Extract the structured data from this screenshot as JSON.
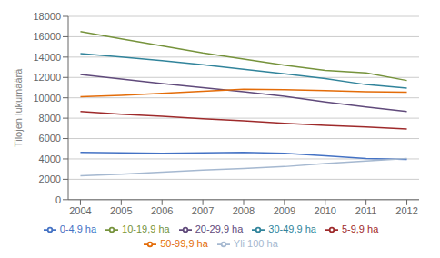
{
  "chart_data": {
    "type": "line",
    "ylabel": "Tilojen lukumäärä",
    "x": [
      2004,
      2005,
      2006,
      2007,
      2008,
      2009,
      2010,
      2011,
      2012
    ],
    "xlim": [
      2003.7,
      2012.3
    ],
    "xticks": [
      2004,
      2005,
      2006,
      2007,
      2008,
      2009,
      2010,
      2011,
      2012
    ],
    "ylim": [
      0,
      18000
    ],
    "yticks": [
      0,
      2000,
      4000,
      6000,
      8000,
      10000,
      12000,
      14000,
      16000,
      18000
    ],
    "grid": true,
    "legend": "bottom",
    "series": [
      {
        "name": "0-4,9 ha",
        "color": "#4472C4",
        "values": [
          4650,
          4600,
          4550,
          4600,
          4650,
          4550,
          4300,
          4050,
          3950
        ]
      },
      {
        "name": "5-9,9 ha",
        "color": "#9E2A2B",
        "values": [
          8650,
          8400,
          8200,
          7950,
          7750,
          7500,
          7300,
          7150,
          6950
        ]
      },
      {
        "name": "10-19,9 ha",
        "color": "#76933C",
        "values": [
          16500,
          15800,
          15100,
          14400,
          13800,
          13200,
          12700,
          12450,
          11700
        ]
      },
      {
        "name": "20-29,9 ha",
        "color": "#604A7B",
        "values": [
          12300,
          11850,
          11400,
          11000,
          10600,
          10150,
          9600,
          9100,
          8650
        ]
      },
      {
        "name": "30-49,9 ha",
        "color": "#31849B",
        "values": [
          14350,
          14000,
          13650,
          13250,
          12800,
          12350,
          11900,
          11300,
          10950
        ]
      },
      {
        "name": "50-99,9 ha",
        "color": "#E36C09",
        "values": [
          10100,
          10250,
          10450,
          10650,
          10850,
          10800,
          10700,
          10600,
          10550
        ]
      },
      {
        "name": "Yli 100 ha",
        "color": "#A5B8D0",
        "values": [
          2350,
          2500,
          2700,
          2900,
          3050,
          3250,
          3550,
          3800,
          4050
        ]
      }
    ]
  }
}
